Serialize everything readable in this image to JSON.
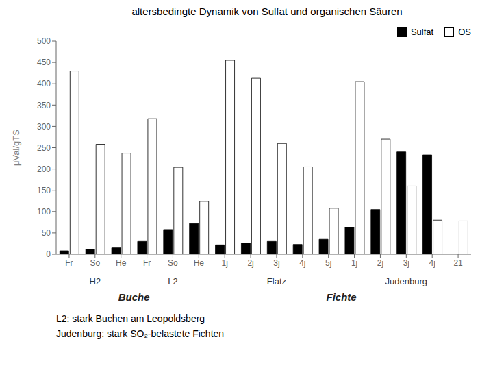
{
  "chart_data": {
    "type": "bar",
    "title": "altersbedingte Dynamik von Sulfat und organischen Säuren",
    "y_label": "μVal/gTS",
    "categories": [
      "Fr",
      "So",
      "He",
      "Fr",
      "So",
      "He",
      "1j",
      "2j",
      "3j",
      "4j",
      "5j",
      "1j",
      "2j",
      "3j",
      "4j",
      "21"
    ],
    "series": [
      {
        "name": "Sulfat",
        "color": "#000000",
        "values": [
          8,
          12,
          15,
          30,
          58,
          72,
          22,
          26,
          30,
          23,
          35,
          63,
          105,
          240,
          233,
          0
        ]
      },
      {
        "name": "OS",
        "color": "#ffffff",
        "values": [
          430,
          258,
          237,
          318,
          204,
          124,
          455,
          413,
          260,
          205,
          108,
          405,
          270,
          160,
          80,
          78
        ]
      }
    ],
    "groups": [
      {
        "label": "H2",
        "section": "Buche",
        "categories": [
          "Fr",
          "So",
          "He"
        ]
      },
      {
        "label": "L2",
        "section": "Buche",
        "categories": [
          "Fr",
          "So",
          "He"
        ]
      },
      {
        "label": "Flatz",
        "section": "Fichte",
        "categories": [
          "1j",
          "2j",
          "3j",
          "4j",
          "5j"
        ]
      },
      {
        "label": "Judenburg",
        "section": "Fichte",
        "categories": [
          "1j",
          "2j",
          "3j",
          "4j",
          "21"
        ]
      }
    ],
    "annotations": [
      "L2: stark Buchen am Leopoldsberg",
      "Judenburg: stark SO₂-belastete Fichten"
    ],
    "ylim": [
      0,
      500
    ],
    "yticks": [
      0,
      50,
      100,
      150,
      200,
      250,
      300,
      350,
      400,
      450,
      500
    ],
    "legend": "upper right",
    "grid": false
  }
}
